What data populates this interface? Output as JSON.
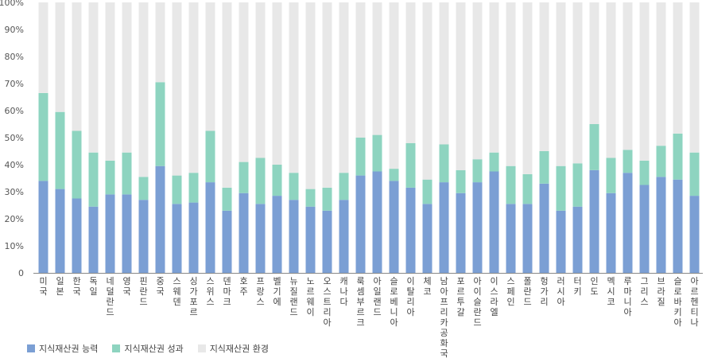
{
  "chart_data": {
    "type": "bar",
    "stacked": true,
    "ylim": [
      0,
      100
    ],
    "yticks": [
      "0",
      "10%",
      "20%",
      "30%",
      "40%",
      "50%",
      "60%",
      "70%",
      "80%",
      "90%",
      "100%"
    ],
    "categories": [
      "미국",
      "일본",
      "한국",
      "독일",
      "네덜란드",
      "영국",
      "핀란드",
      "중국",
      "스웨덴",
      "싱가포르",
      "스위스",
      "덴마크",
      "호주",
      "프랑스",
      "벨기에",
      "뉴질랜드",
      "노르웨이",
      "오스트리아",
      "캐나다",
      "룩셈부르크",
      "아일랜드",
      "슬로베니아",
      "이탈리아",
      "체코",
      "남아프리카공화국",
      "포르투갈",
      "아이슬란드",
      "이스라엘",
      "스페인",
      "폴란드",
      "헝가리",
      "러시아",
      "터키",
      "인도",
      "멕시코",
      "루마니아",
      "그리스",
      "브라질",
      "슬로바키아",
      "아르헨티나"
    ],
    "series": [
      {
        "name": "지식재산권 능력",
        "color": "#7b9fd4",
        "values": [
          34,
          31,
          27.5,
          24.5,
          29,
          29,
          27,
          39.5,
          25.5,
          26,
          33.5,
          23,
          29.5,
          25.5,
          28.5,
          27,
          24.5,
          23,
          27,
          36,
          37.5,
          34,
          31.5,
          25.5,
          33.5,
          29.5,
          33.5,
          37.5,
          25.5,
          25.5,
          33,
          23,
          24.5,
          38,
          29.5,
          37,
          32.5,
          35.5,
          34.5,
          28.5
        ]
      },
      {
        "name": "지식재산권 성과",
        "color": "#8ed4c0",
        "values": [
          32.5,
          28.5,
          25,
          20,
          12.5,
          15.5,
          8.5,
          31,
          10.5,
          11,
          19,
          8.5,
          11.5,
          17,
          11.5,
          10,
          6.5,
          8.5,
          10,
          14,
          13.5,
          4.5,
          16.5,
          9,
          14,
          8.5,
          8.5,
          7,
          14,
          11,
          12,
          16.5,
          16,
          17,
          13,
          8.5,
          9,
          11.5,
          17,
          16
        ]
      },
      {
        "name": "지식재산권 환경",
        "color": "#e8e8e8",
        "values": [
          33.5,
          40.5,
          47.5,
          55.5,
          58.5,
          55.5,
          64.5,
          29.5,
          64,
          63,
          47.5,
          68.5,
          59,
          57.5,
          60,
          63,
          69,
          68.5,
          63,
          50,
          49,
          61.5,
          52,
          65.5,
          52.5,
          62,
          58,
          55.5,
          60.5,
          63.5,
          55,
          60.5,
          59.5,
          45,
          57.5,
          54.5,
          58.5,
          53,
          48.5,
          55.5
        ]
      }
    ],
    "legend_position": "bottom-left"
  }
}
